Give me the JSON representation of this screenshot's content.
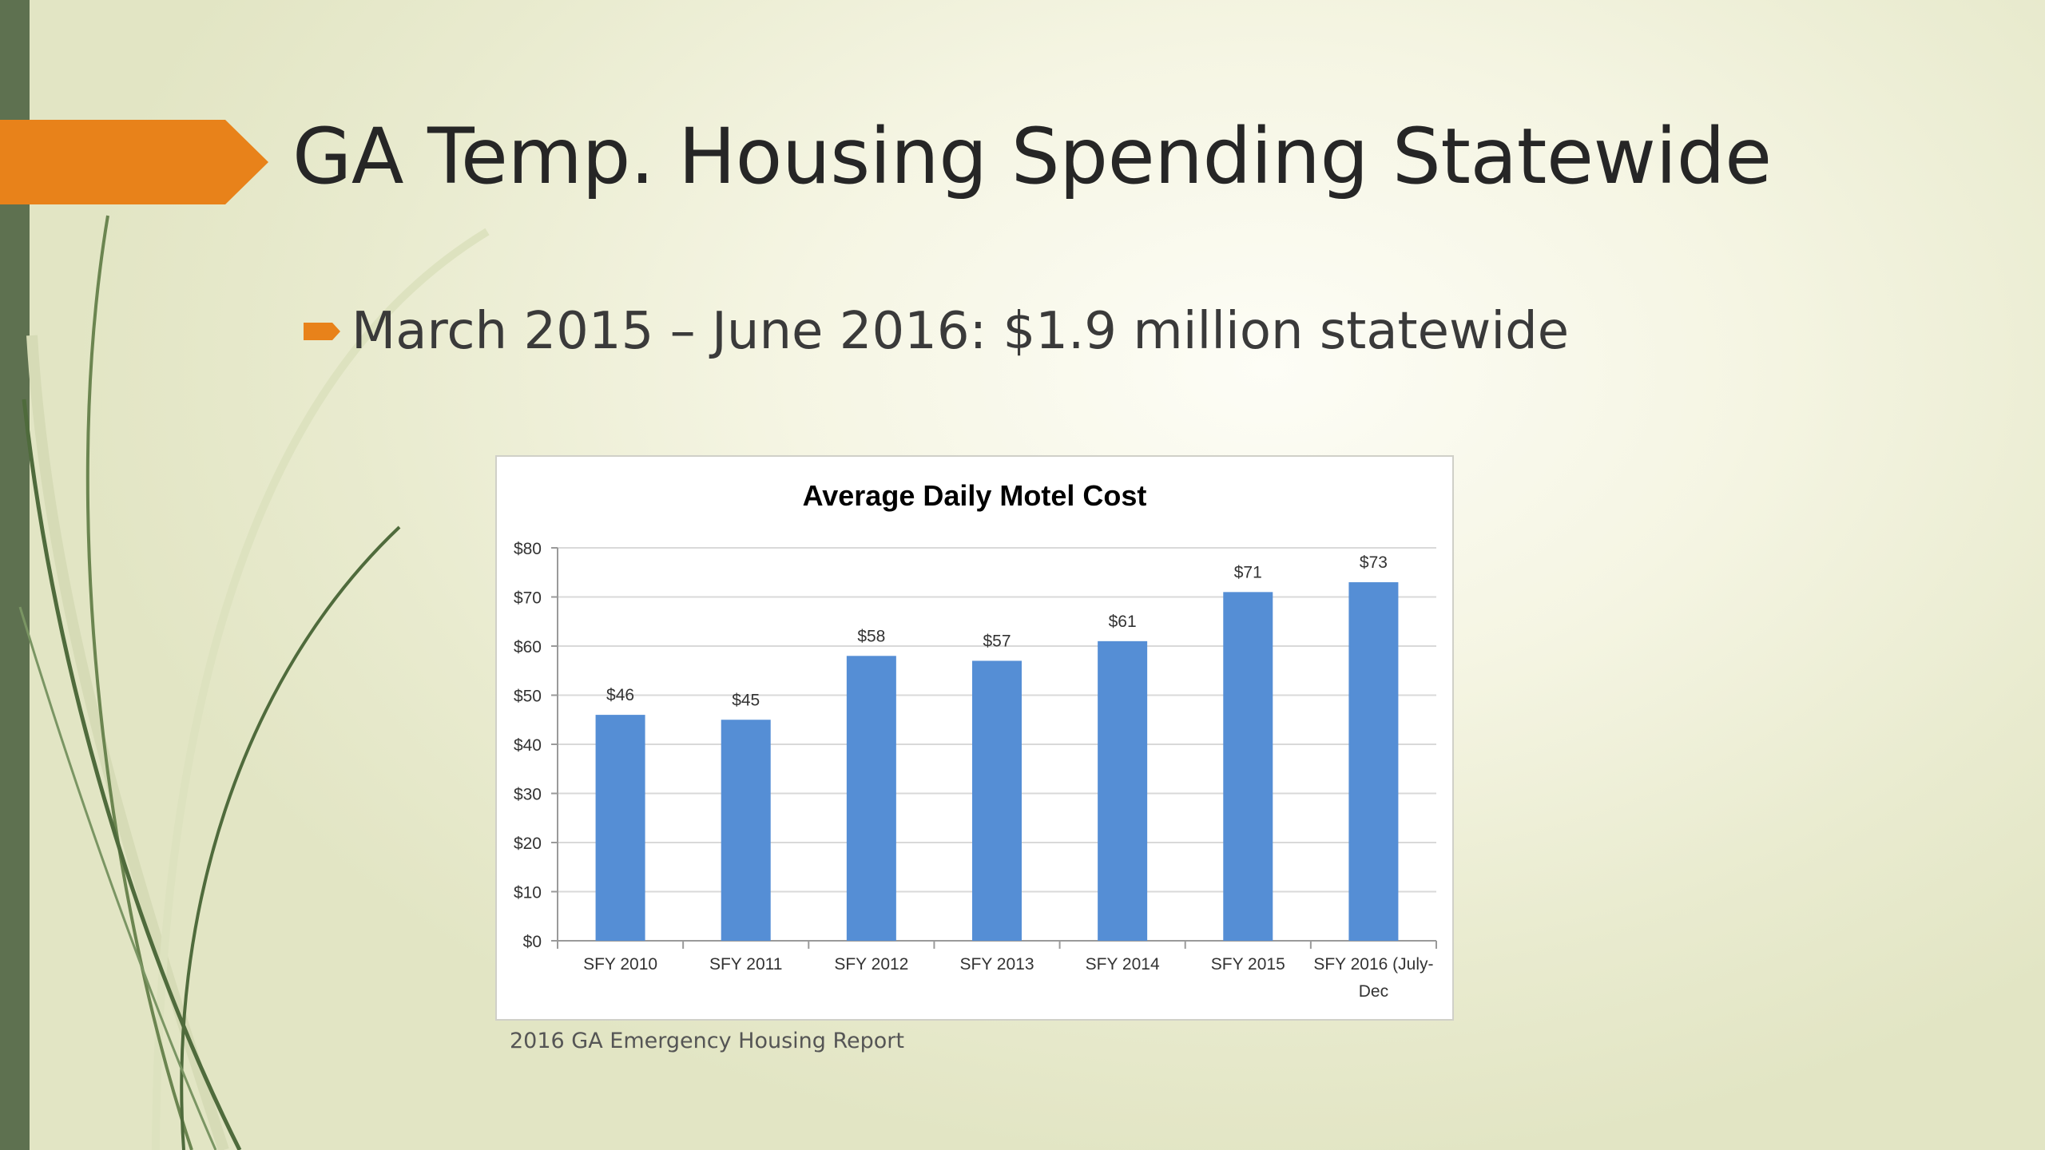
{
  "slide": {
    "title": "GA Temp. Housing Spending Statewide",
    "bullet": "March 2015 – June 2016: $1.9 million statewide",
    "source": "2016 GA Emergency Housing Report"
  },
  "colors": {
    "accent": "#e8821a",
    "sidebar": "#5e7150",
    "bar": "#558ed5"
  },
  "chart_data": {
    "type": "bar",
    "title": "Average Daily Motel Cost",
    "categories": [
      "SFY 2010",
      "SFY 2011",
      "SFY 2012",
      "SFY 2013",
      "SFY 2014",
      "SFY 2015",
      "SFY 2016 (July-Dec"
    ],
    "values": [
      46,
      45,
      58,
      57,
      61,
      71,
      73
    ],
    "value_labels": [
      "$46",
      "$45",
      "$58",
      "$57",
      "$61",
      "$71",
      "$73"
    ],
    "y_ticks": [
      0,
      10,
      20,
      30,
      40,
      50,
      60,
      70,
      80
    ],
    "y_tick_labels": [
      "$0",
      "$10",
      "$20",
      "$30",
      "$40",
      "$50",
      "$60",
      "$70",
      "$80"
    ],
    "ylim": [
      0,
      80
    ],
    "xlabel": "",
    "ylabel": "",
    "grid": true,
    "legend": "none"
  }
}
